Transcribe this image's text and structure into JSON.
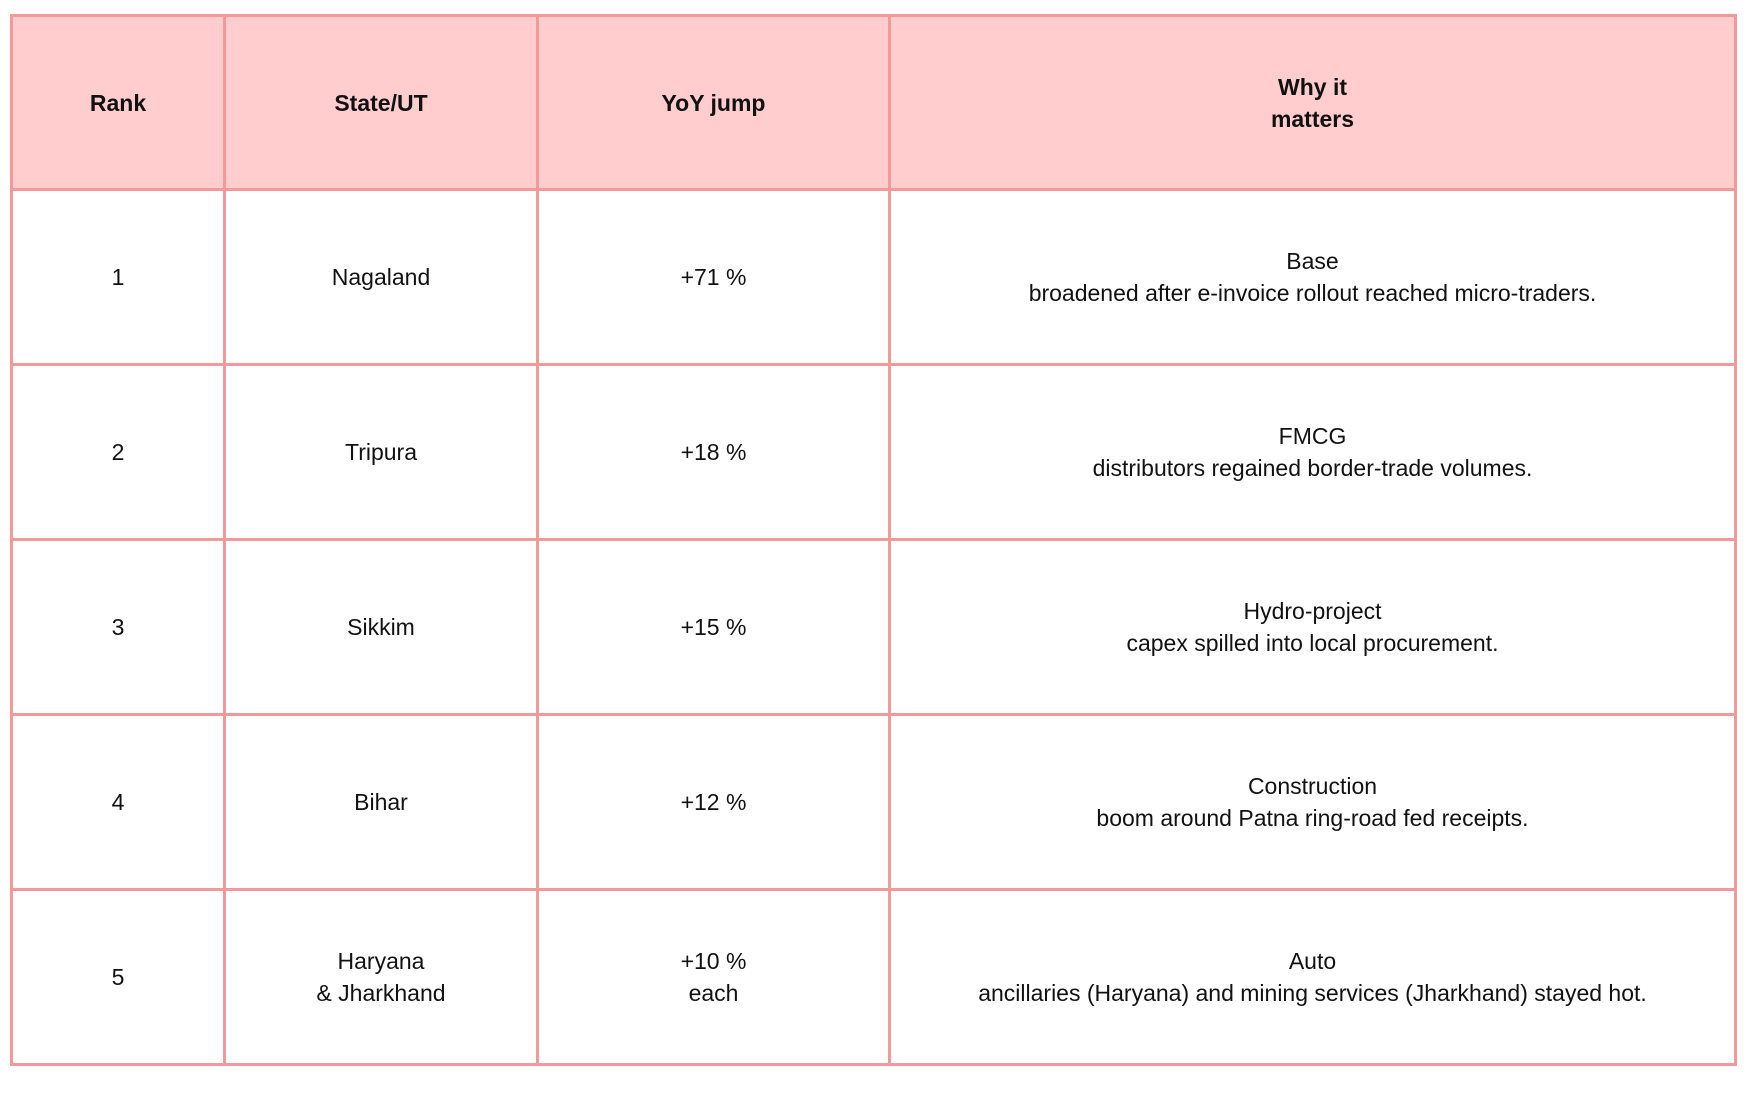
{
  "table": {
    "headers": {
      "rank": "Rank",
      "state": "State/UT",
      "yoy": "YoY jump",
      "why": "Why it\nmatters"
    },
    "rows": [
      {
        "rank": "1",
        "state": "Nagaland",
        "yoy": "+71 %",
        "why": "Base\nbroadened after e-invoice rollout reached micro-traders."
      },
      {
        "rank": "2",
        "state": "Tripura",
        "yoy": "+18 %",
        "why": "FMCG\ndistributors regained border-trade volumes."
      },
      {
        "rank": "3",
        "state": "Sikkim",
        "yoy": "+15 %",
        "why": "Hydro-project\ncapex spilled into local procurement."
      },
      {
        "rank": "4",
        "state": "Bihar",
        "yoy": "+12 %",
        "why": "Construction\nboom around Patna ring-road fed receipts."
      },
      {
        "rank": "5",
        "state": "Haryana\n& Jharkhand",
        "yoy": "+10 %\neach",
        "why": "Auto\nancillaries (Haryana) and mining services (Jharkhand) stayed hot."
      }
    ]
  },
  "colors": {
    "border": "#f4999a",
    "header_background": "#ffcdce",
    "cell_background": "#ffffff"
  }
}
